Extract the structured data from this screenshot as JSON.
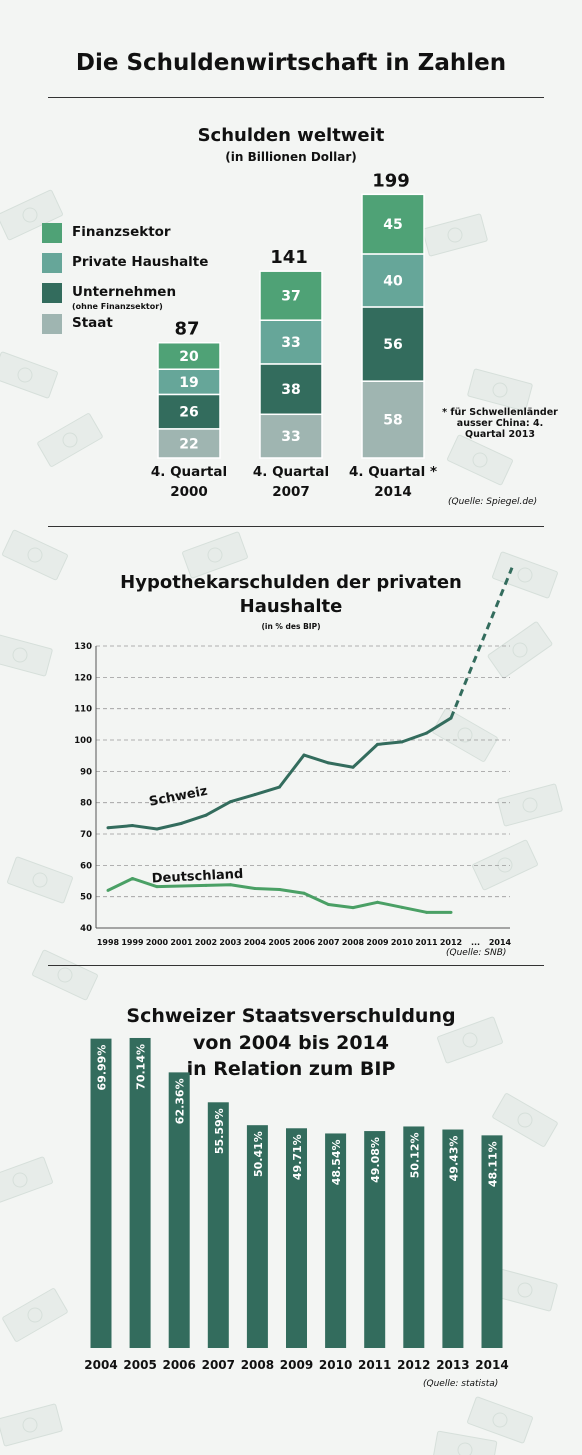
{
  "page": {
    "title": "Die Schuldenwirtschaft in Zahlen"
  },
  "section1": {
    "title": "Schulden weltweit",
    "subtitle": "(in Billionen Dollar)",
    "legend": [
      {
        "label": "Finanzsektor",
        "color": "#4fa276"
      },
      {
        "label": "Private Haushalte",
        "color": "#66a699"
      },
      {
        "label": "Unternehmen",
        "note": "(ohne Finanzsektor)",
        "color": "#336c5d"
      },
      {
        "label": "Staat",
        "color": "#9fb5b1"
      }
    ],
    "footnote": "* für Schwellenländer ausser China: 4. Quartal 2013",
    "source": "(Quelle: Spiegel.de)"
  },
  "section2": {
    "title_line1": "Hypothekarschulden der privaten",
    "title_line2": "Haushalte",
    "subtitle": "(in % des BIP)",
    "source": "(Quelle: SNB)"
  },
  "section3": {
    "title_line1": "Schweizer Staatsverschuldung",
    "title_line2": "von 2004 bis 2014",
    "title_line3": "in Relation zum BIP",
    "source": "(Quelle: statista)"
  },
  "chart_data": [
    {
      "type": "bar",
      "stacked": true,
      "title": "Schulden weltweit",
      "subtitle": "(in Billionen Dollar)",
      "categories": [
        "4. Quartal 2000",
        "4. Quartal 2007",
        "4. Quartal * 2014"
      ],
      "totals": [
        87,
        141,
        199
      ],
      "series": [
        {
          "name": "Staat",
          "values": [
            22,
            33,
            58
          ],
          "color": "#9fb5b1"
        },
        {
          "name": "Unternehmen (ohne Finanzsektor)",
          "values": [
            26,
            38,
            56
          ],
          "color": "#336c5d"
        },
        {
          "name": "Private Haushalte",
          "values": [
            19,
            33,
            40
          ],
          "color": "#66a699"
        },
        {
          "name": "Finanzsektor",
          "values": [
            20,
            37,
            45
          ],
          "color": "#4fa276"
        }
      ]
    },
    {
      "type": "line",
      "title": "Hypothekarschulden der privaten Haushalte",
      "subtitle": "(in % des BIP)",
      "x_ticks": [
        "1998",
        "1999",
        "2000",
        "2001",
        "2002",
        "2003",
        "2004",
        "2005",
        "2006",
        "2007",
        "2008",
        "2009",
        "2010",
        "2011",
        "2012",
        "...",
        "2014"
      ],
      "ylim": [
        40,
        130
      ],
      "y_ticks": [
        40,
        50,
        60,
        70,
        80,
        90,
        100,
        110,
        120,
        130
      ],
      "grid": true,
      "series": [
        {
          "name": "Schweiz",
          "x": [
            1998,
            1999,
            2000,
            2001,
            2002,
            2003,
            2004,
            2005,
            2006,
            2007,
            2008,
            2009,
            2010,
            2011,
            2012
          ],
          "values": [
            72,
            72.7,
            71.6,
            73.4,
            76,
            80.3,
            82.6,
            85,
            95.2,
            92.7,
            91.3,
            98.6,
            99.4,
            102.2,
            107
          ],
          "projection": {
            "x": [
              2012,
              2014
            ],
            "values": [
              107,
              155
            ]
          },
          "color": "#336c5d"
        },
        {
          "name": "Deutschland",
          "x": [
            1998,
            1999,
            2000,
            2001,
            2002,
            2003,
            2004,
            2005,
            2006,
            2007,
            2008,
            2009,
            2010,
            2011,
            2012
          ],
          "values": [
            52,
            55.8,
            53.2,
            53.4,
            53.6,
            53.8,
            52.6,
            52.3,
            51.1,
            47.5,
            46.5,
            48.2,
            46.6,
            45,
            45
          ],
          "color": "#4aa065"
        }
      ]
    },
    {
      "type": "bar",
      "title": "Schweizer Staatsverschuldung von 2004 bis 2014 in Relation zum BIP",
      "categories": [
        "2004",
        "2005",
        "2006",
        "2007",
        "2008",
        "2009",
        "2010",
        "2011",
        "2012",
        "2013",
        "2014"
      ],
      "values": [
        69.99,
        70.14,
        62.36,
        55.59,
        50.41,
        49.71,
        48.54,
        49.08,
        50.12,
        49.43,
        48.11
      ],
      "labels": [
        "69.99%",
        "70.14%",
        "62.36%",
        "55.59%",
        "50.41%",
        "49.71%",
        "48.54%",
        "49.08%",
        "50.12%",
        "49.43%",
        "48.11%"
      ],
      "color": "#336c5d"
    }
  ]
}
